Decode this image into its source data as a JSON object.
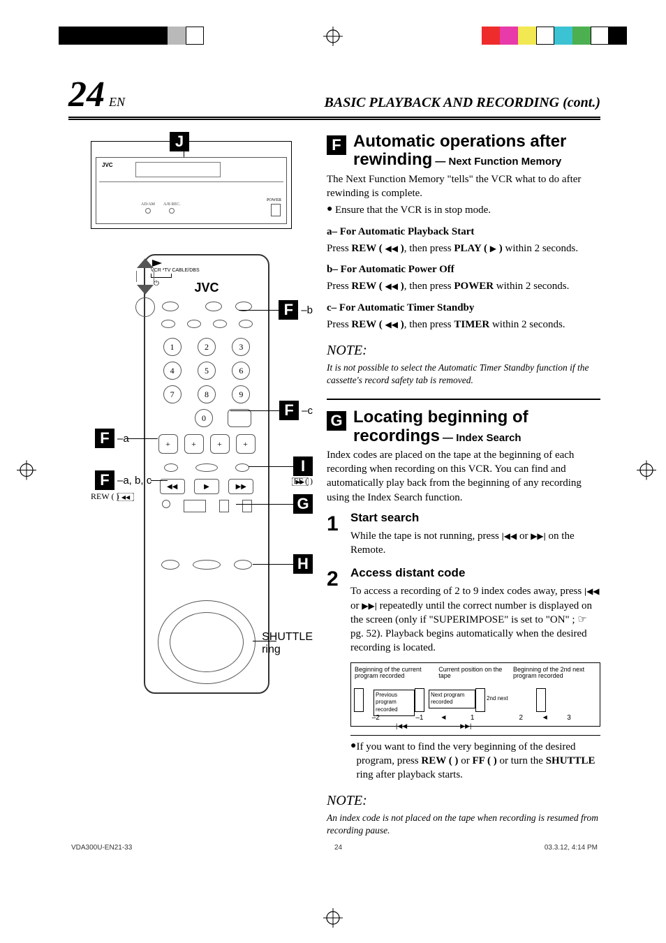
{
  "colors": {
    "black": "#000000",
    "white": "#ffffff",
    "gray": "#b9b9b9",
    "red": "#ee2c2c",
    "magenta": "#e83aa8",
    "yellow": "#f2e851",
    "cyan": "#3bc3d3",
    "green": "#4caf50"
  },
  "top_bar_left": [
    "#000000",
    "#000000",
    "#000000",
    "#000000",
    "#000000",
    "#000000",
    "#b9b9b9",
    "#ffffff"
  ],
  "top_bar_right": [
    "#ee2c2c",
    "#e83aa8",
    "#f2e851",
    "#ffffff",
    "#3bc3d3",
    "#4caf50",
    "#ffffff",
    "#000000"
  ],
  "header": {
    "page_num": "24",
    "lang": "EN",
    "title": "BASIC PLAYBACK AND RECORDING (cont.)"
  },
  "vcr": {
    "brand": "JVC",
    "labels": [
      "AD/AM",
      "A/B REC."
    ],
    "power": "POWER"
  },
  "remote": {
    "brand": "JVC",
    "top_note_l1": "VCR  *TV CABLE/DBS",
    "nums": [
      "1",
      "2",
      "3",
      "4",
      "5",
      "6",
      "7",
      "8",
      "9",
      "0"
    ],
    "plus": [
      "+",
      "+",
      "+",
      "+"
    ]
  },
  "leads": {
    "J": {
      "tag": "J"
    },
    "Fb": {
      "tag": "F",
      "sub": "–b"
    },
    "Fc": {
      "tag": "F",
      "sub": "–c"
    },
    "FaLeft": {
      "tag": "F",
      "sub": "–a"
    },
    "Fabc": {
      "tag": "F",
      "sub": "–a, b, c"
    },
    "I": {
      "tag": "I"
    },
    "G": {
      "tag": "G"
    },
    "H": {
      "tag": "H"
    },
    "rew": "REW (       )",
    "ff": "FF (       )",
    "shuttle_l1": "SHUTTLE",
    "shuttle_l2": "ring"
  },
  "sectionF": {
    "badge": "F",
    "title_l1": "Automatic operations after",
    "title_l2": "rewinding",
    "sub": "— Next Function Memory",
    "intro": "The Next Function Memory \"tells\" the VCR what to do after rewinding is complete.",
    "bullet1": "Ensure that the VCR is in stop mode.",
    "a_h": "a– For Automatic Playback Start",
    "a_p_1": "Press ",
    "a_rew": "REW ( ",
    "a_p_2": " )",
    "a_p_3": ", then press ",
    "a_play": "PLAY ( ",
    "a_p_4": " )",
    "a_p_5": " within 2 seconds.",
    "b_h": "b– For Automatic Power Off",
    "b_p_1": "Press ",
    "b_p_3": ", then press ",
    "b_pow": "POWER",
    "b_p_5": " within 2 seconds.",
    "c_h": "c– For Automatic Timer Standby",
    "c_p_3": ", then press ",
    "c_tim": "TIMER",
    "c_p_5": " within 2 seconds.",
    "note_h": "NOTE:",
    "note_t": "It is not possible to select the Automatic Timer Standby function if the cassette's record safety tab is removed."
  },
  "sectionG": {
    "badge": "G",
    "title_l1": "Locating beginning of",
    "title_l2": "recordings",
    "sub": "— Index Search",
    "intro": "Index codes are placed on the tape at the beginning of each recording when recording on this VCR. You can find and automatically play back from the beginning of any recording using the Index Search function.",
    "step1_h": "Start search",
    "step1_t_a": "While the tape is not running, press ",
    "step1_t_b": " or ",
    "step1_t_c": " on the Remote.",
    "step2_h": "Access distant code",
    "step2_p1a": "To access a recording of 2 to 9 index codes away, press ",
    "step2_p1b": " or ",
    "step2_p1c": " repeatedly until the correct number is displayed on the screen (only if \"SUPERIMPOSE\" is set to \"ON\" ; ☞ pg. 52). Playback begins automatically when the desired recording is located.",
    "diag": {
      "t1": "Beginning of the current program recorded",
      "t2": "Current position on the tape",
      "t3": "Beginning of the 2nd next program recorded",
      "prev": "Previous program recorded",
      "next": "Next program recorded",
      "2nd": "2nd next",
      "b_m2": "–2",
      "b_m1": "–1",
      "b_1": "1",
      "b_2": "2",
      "b_3": "3"
    },
    "hr_bullet_a": "If you want to find the very beginning of the desired program, press ",
    "hr_rew": "REW (       )",
    "hr_or": " or ",
    "hr_ff": "FF (       )",
    "hr_bullet_b": " or turn the ",
    "hr_shuttle": "SHUTTLE",
    "hr_bullet_c": " ring after playback starts.",
    "note_h": "NOTE:",
    "note_t": "An index code is not placed on the tape when recording is resumed from recording pause."
  },
  "footer": {
    "l": "VDA300U-EN21-33",
    "c": "24",
    "r": "03.3.12, 4:14 PM"
  }
}
